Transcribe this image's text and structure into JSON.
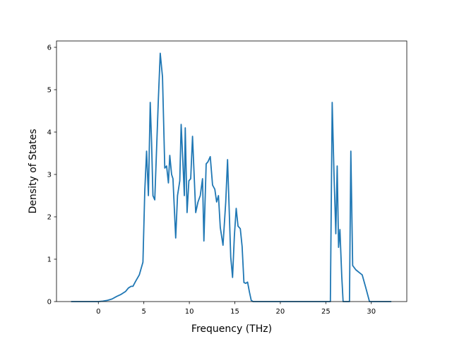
{
  "chart_data": {
    "type": "line",
    "title": "",
    "xlabel": "Frequency (THz)",
    "ylabel": "Density of States",
    "xlim": [
      -4.6,
      33.9
    ],
    "ylim": [
      0,
      6.15
    ],
    "xticks": [
      0,
      5,
      10,
      15,
      20,
      25,
      30
    ],
    "yticks": [
      0,
      1,
      2,
      3,
      4,
      5,
      6
    ],
    "grid": false,
    "legend": "none",
    "series": [
      {
        "color": "#1f77b4",
        "x": [
          -3.0,
          -2.0,
          -1.0,
          0.0,
          0.5,
          1.0,
          1.5,
          2.0,
          2.5,
          3.0,
          3.3,
          3.6,
          3.8,
          4.1,
          4.5,
          4.9,
          5.1,
          5.3,
          5.5,
          5.7,
          5.85,
          6.0,
          6.2,
          6.4,
          6.6,
          6.8,
          7.05,
          7.3,
          7.5,
          7.7,
          7.85,
          8.05,
          8.2,
          8.5,
          8.7,
          8.95,
          9.1,
          9.3,
          9.45,
          9.55,
          9.75,
          9.95,
          10.15,
          10.35,
          10.7,
          10.95,
          11.2,
          11.45,
          11.6,
          11.85,
          12.05,
          12.3,
          12.55,
          12.8,
          13.0,
          13.2,
          13.4,
          13.7,
          14.0,
          14.2,
          14.55,
          14.75,
          14.95,
          15.15,
          15.35,
          15.6,
          15.8,
          16.0,
          16.2,
          16.4,
          16.6,
          16.8,
          17.0,
          20.0,
          25.0,
          25.5,
          25.7,
          25.9,
          26.1,
          26.25,
          26.4,
          26.55,
          26.75,
          26.9,
          27.3,
          27.6,
          27.75,
          27.95,
          28.3,
          28.7,
          29.0,
          29.4,
          29.8,
          30.5,
          31.5,
          32.2
        ],
        "y": [
          0,
          0,
          0,
          0,
          0.01,
          0.03,
          0.06,
          0.12,
          0.17,
          0.24,
          0.32,
          0.36,
          0.36,
          0.48,
          0.63,
          0.93,
          2.6,
          3.55,
          2.5,
          4.7,
          3.75,
          2.5,
          2.4,
          3.6,
          4.8,
          5.86,
          5.3,
          3.15,
          3.2,
          2.8,
          3.45,
          3.0,
          2.9,
          1.5,
          2.5,
          2.85,
          4.18,
          3.25,
          2.5,
          4.1,
          2.1,
          2.85,
          2.9,
          3.9,
          2.1,
          2.35,
          2.5,
          2.9,
          1.43,
          3.25,
          3.3,
          3.42,
          2.75,
          2.65,
          2.35,
          2.5,
          1.75,
          1.33,
          2.35,
          3.35,
          1.05,
          0.57,
          1.55,
          2.2,
          1.78,
          1.72,
          1.3,
          0.45,
          0.43,
          0.46,
          0.23,
          0.03,
          0,
          0,
          0,
          0,
          4.7,
          3.0,
          1.6,
          3.2,
          1.28,
          1.7,
          0.6,
          0,
          0,
          0,
          3.55,
          0.85,
          0.75,
          0.68,
          0.63,
          0.32,
          0,
          0,
          0,
          0
        ]
      }
    ]
  }
}
